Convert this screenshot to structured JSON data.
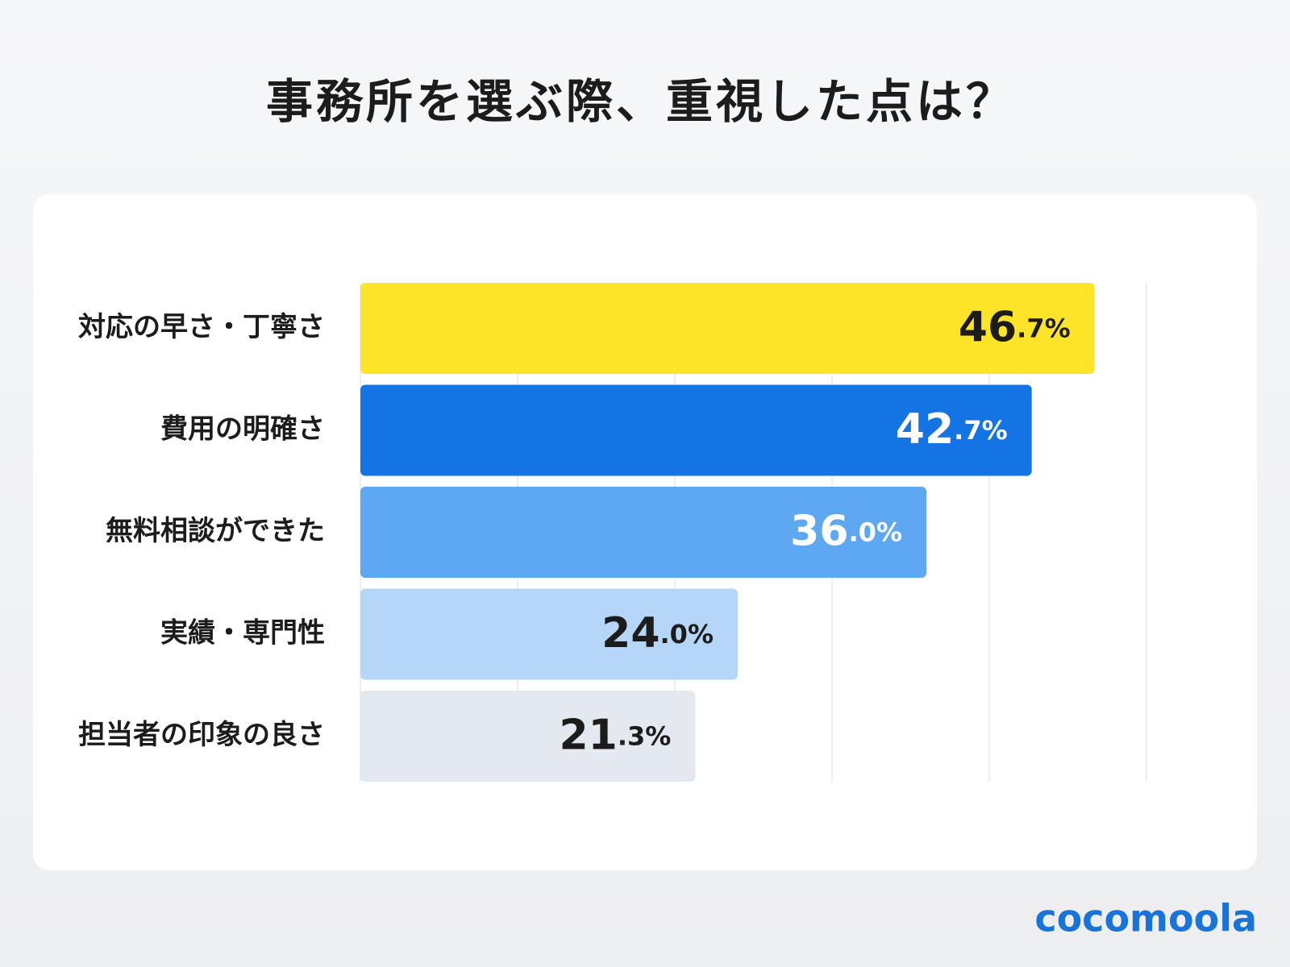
{
  "chart_data": {
    "type": "barh",
    "title": "事務所を選ぶ際、重視した点は？",
    "categories": [
      "対応の早さ・丁寧さ",
      "費用の明確さ",
      "無料相談ができた",
      "実績・専門性",
      "担当者の印象の良さ"
    ],
    "values": [
      46.7,
      42.7,
      36.0,
      24.0,
      21.3
    ],
    "value_labels": [
      "46.7%",
      "42.7%",
      "36.0%",
      "24.0%",
      "21.3%"
    ],
    "colors": [
      "#fde428",
      "#1474e4",
      "#5da8f0",
      "#b5d6f8",
      "#e4e9ef"
    ],
    "label_colors": [
      "#1c1c1c",
      "#ffffff",
      "#ffffff",
      "#1c1c1c",
      "#1c1c1c"
    ],
    "xlim": [
      0,
      50
    ],
    "xticks": [
      0,
      10,
      20,
      30,
      40,
      50
    ],
    "grid": true
  },
  "brand": "cocomoola"
}
